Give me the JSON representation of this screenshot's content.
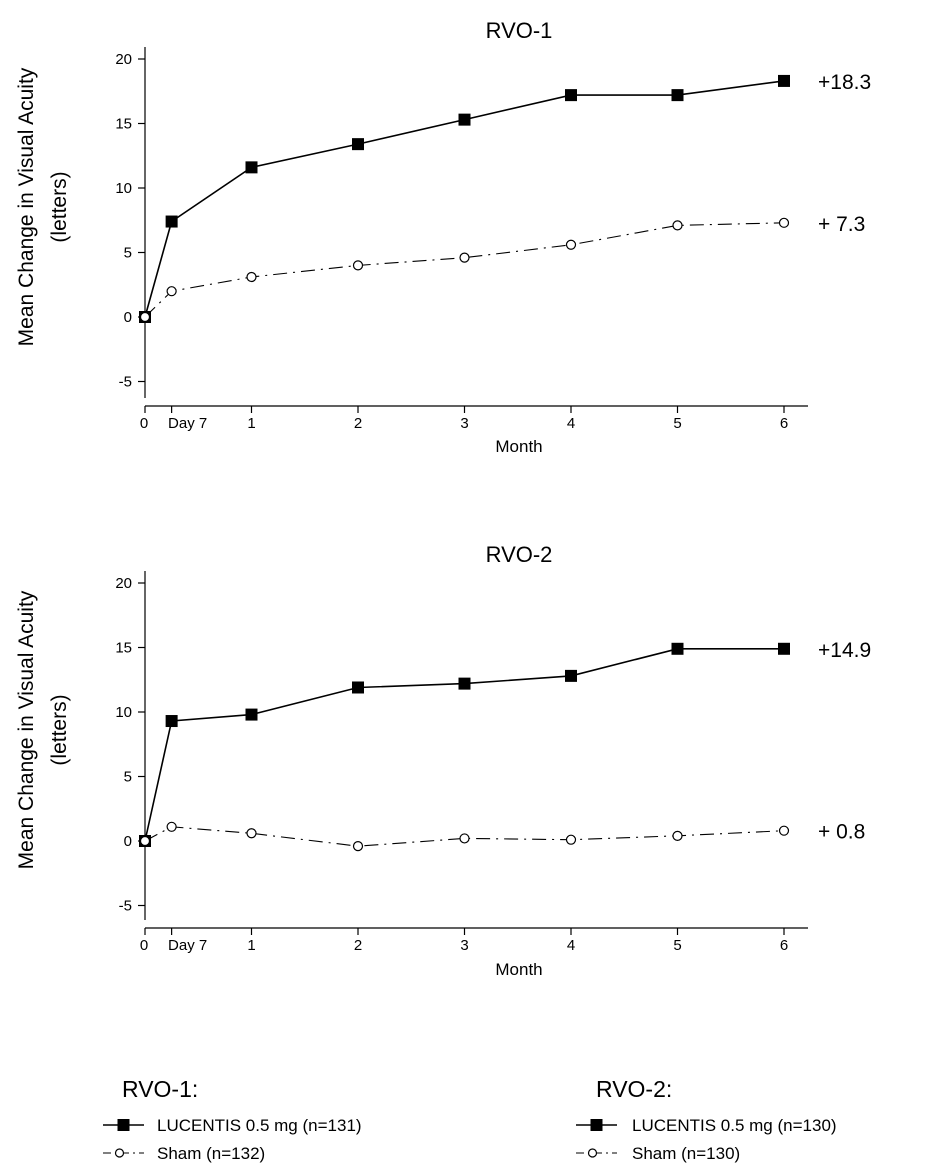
{
  "chart_data": [
    {
      "type": "line",
      "title": "RVO-1",
      "xlabel": "Month",
      "ylabel": [
        "Mean Change in Visual Acuity",
        "(letters)"
      ],
      "ylim": [
        -5,
        20
      ],
      "yticks": [
        -5,
        0,
        5,
        10,
        15,
        20
      ],
      "x": [
        0,
        0.25,
        1,
        2,
        3,
        4,
        5,
        6
      ],
      "x_tick_labels": [
        "0",
        "Day 7",
        "1",
        "2",
        "3",
        "4",
        "5",
        "6"
      ],
      "series": [
        {
          "name": "LUCENTIS 0.5 mg (n=131)",
          "marker": "filled-square",
          "line": "solid",
          "values": [
            0,
            7.4,
            11.6,
            13.4,
            15.3,
            17.2,
            17.2,
            18.3
          ],
          "end_label": "+18.3"
        },
        {
          "name": "Sham (n=132)",
          "marker": "open-circle",
          "line": "dash-dot",
          "values": [
            0,
            2.0,
            3.1,
            4.0,
            4.6,
            5.6,
            7.1,
            7.3
          ],
          "end_label": "+ 7.3"
        }
      ],
      "grid": false
    },
    {
      "type": "line",
      "title": "RVO-2",
      "xlabel": "Month",
      "ylabel": [
        "Mean Change in Visual Acuity",
        "(letters)"
      ],
      "ylim": [
        -5,
        20
      ],
      "yticks": [
        -5,
        0,
        5,
        10,
        15,
        20
      ],
      "x": [
        0,
        0.25,
        1,
        2,
        3,
        4,
        5,
        6
      ],
      "x_tick_labels": [
        "0",
        "Day 7",
        "1",
        "2",
        "3",
        "4",
        "5",
        "6"
      ],
      "series": [
        {
          "name": "LUCENTIS 0.5 mg (n=130)",
          "marker": "filled-square",
          "line": "solid",
          "values": [
            0,
            9.3,
            9.8,
            11.9,
            12.2,
            12.8,
            14.9,
            14.9
          ],
          "end_label": "+14.9"
        },
        {
          "name": "Sham (n=130)",
          "marker": "open-circle",
          "line": "dash-dot",
          "values": [
            0,
            1.1,
            0.6,
            -0.4,
            0.2,
            0.1,
            0.4,
            0.8
          ],
          "end_label": "+ 0.8"
        }
      ],
      "grid": false
    }
  ],
  "legend": [
    {
      "heading": "RVO-1:",
      "items": [
        "LUCENTIS 0.5 mg (n=131)",
        "Sham (n=132)"
      ]
    },
    {
      "heading": "RVO-2:",
      "items": [
        "LUCENTIS 0.5 mg (n=130)",
        "Sham (n=130)"
      ]
    }
  ],
  "colors": {
    "line": "#000000",
    "background": "#ffffff"
  }
}
